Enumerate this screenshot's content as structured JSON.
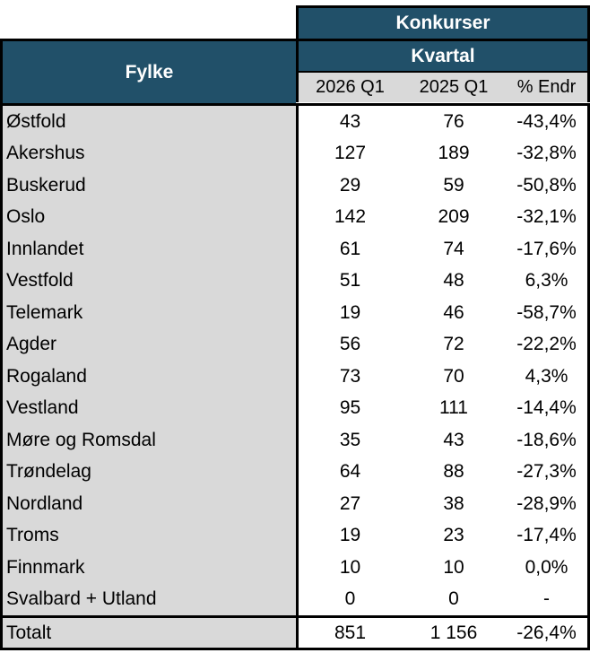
{
  "colors": {
    "header_blue": "#215069",
    "label_gray": "#D9D9D9",
    "border_black": "#000000",
    "cell_white": "#FFFFFF"
  },
  "chart_data": {
    "type": "table",
    "title": "Konkurser",
    "group_header": "Kvartal",
    "row_header": "Fylke",
    "columns": [
      "2026 Q1",
      "2025 Q1",
      "% Endr"
    ],
    "rows": [
      {
        "fylke": "Østfold",
        "q2026": "43",
        "q2025": "76",
        "endr": "-43,4%"
      },
      {
        "fylke": "Akershus",
        "q2026": "127",
        "q2025": "189",
        "endr": "-32,8%"
      },
      {
        "fylke": "Buskerud",
        "q2026": "29",
        "q2025": "59",
        "endr": "-50,8%"
      },
      {
        "fylke": "Oslo",
        "q2026": "142",
        "q2025": "209",
        "endr": "-32,1%"
      },
      {
        "fylke": "Innlandet",
        "q2026": "61",
        "q2025": "74",
        "endr": "-17,6%"
      },
      {
        "fylke": "Vestfold",
        "q2026": "51",
        "q2025": "48",
        "endr": "6,3%"
      },
      {
        "fylke": "Telemark",
        "q2026": "19",
        "q2025": "46",
        "endr": "-58,7%"
      },
      {
        "fylke": "Agder",
        "q2026": "56",
        "q2025": "72",
        "endr": "-22,2%"
      },
      {
        "fylke": "Rogaland",
        "q2026": "73",
        "q2025": "70",
        "endr": "4,3%"
      },
      {
        "fylke": "Vestland",
        "q2026": "95",
        "q2025": "111",
        "endr": "-14,4%"
      },
      {
        "fylke": "Møre og Romsdal",
        "q2026": "35",
        "q2025": "43",
        "endr": "-18,6%"
      },
      {
        "fylke": "Trøndelag",
        "q2026": "64",
        "q2025": "88",
        "endr": "-27,3%"
      },
      {
        "fylke": "Nordland",
        "q2026": "27",
        "q2025": "38",
        "endr": "-28,9%"
      },
      {
        "fylke": "Troms",
        "q2026": "19",
        "q2025": "23",
        "endr": "-17,4%"
      },
      {
        "fylke": "Finnmark",
        "q2026": "10",
        "q2025": "10",
        "endr": "0,0%"
      },
      {
        "fylke": "Svalbard + Utland",
        "q2026": "0",
        "q2025": "0",
        "endr": "-"
      }
    ],
    "total": {
      "fylke": "Totalt",
      "q2026": "851",
      "q2025": "1 156",
      "endr": "-26,4%"
    }
  }
}
